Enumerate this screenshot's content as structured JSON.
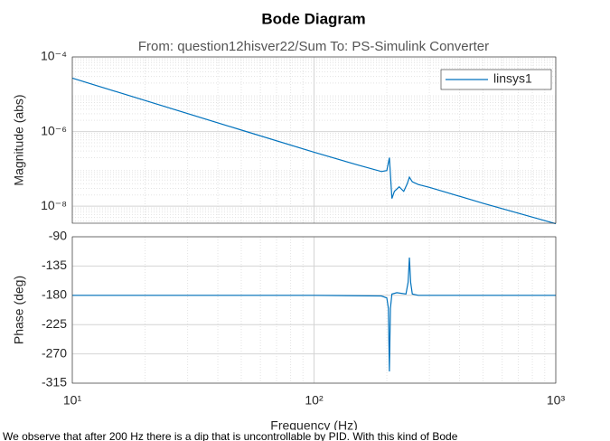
{
  "caption": "We observe that after 200 Hz there is a dip that is uncontrollable by PID. With this kind of Bode",
  "chart_data": [
    {
      "type": "line",
      "title": "Bode Diagram",
      "subtitle": "From: question12hisver22/Sum  To: PS-Simulink Converter",
      "ylabel": "Magnitude (abs)",
      "log_x": true,
      "log_y": true,
      "grid": true,
      "legend": "upper right",
      "xlim": [
        10,
        1000
      ],
      "ylim": [
        3.5e-09,
        0.0001
      ],
      "yticks": [
        {
          "value": 0.0001,
          "label": "10⁻⁴"
        },
        {
          "value": 1e-06,
          "label": "10⁻⁶"
        },
        {
          "value": 1e-08,
          "label": "10⁻⁸"
        }
      ],
      "x": [
        10,
        20,
        50,
        100,
        150,
        190,
        200,
        205,
        210,
        215,
        225,
        235,
        243,
        248,
        255,
        270,
        300,
        500,
        1000
      ],
      "series": [
        {
          "name": "linsys1",
          "color": "#0072bd",
          "values": [
            2.7e-05,
            6.8e-06,
            1.1e-06,
            2.8e-07,
            1.3e-07,
            8.5e-08,
            9e-08,
            2e-07,
            1.6e-08,
            2.5e-08,
            3.3e-08,
            2.5e-08,
            4e-08,
            6e-08,
            4.5e-08,
            3.8e-08,
            3.2e-08,
            1.2e-08,
            3.4e-09
          ]
        }
      ]
    },
    {
      "type": "line",
      "ylabel": "Phase (deg)",
      "xlabel": "Frequency  (Hz)",
      "log_x": true,
      "grid": true,
      "color": "#0072bd",
      "xlim": [
        10,
        1000
      ],
      "ylim": [
        -315,
        -90
      ],
      "xticks": [
        {
          "value": 10,
          "label": "10¹"
        },
        {
          "value": 100,
          "label": "10²"
        },
        {
          "value": 1000,
          "label": "10³"
        }
      ],
      "yticks": [
        -90,
        -135,
        -180,
        -225,
        -270,
        -315
      ],
      "x": [
        10,
        100,
        190,
        200,
        203,
        205,
        207,
        210,
        220,
        240,
        245,
        248,
        251,
        255,
        270,
        1000
      ],
      "values": [
        -180,
        -180,
        -181,
        -184,
        -200,
        -297,
        -200,
        -178,
        -176,
        -178,
        -160,
        -122,
        -160,
        -178,
        -180,
        -180
      ]
    }
  ]
}
